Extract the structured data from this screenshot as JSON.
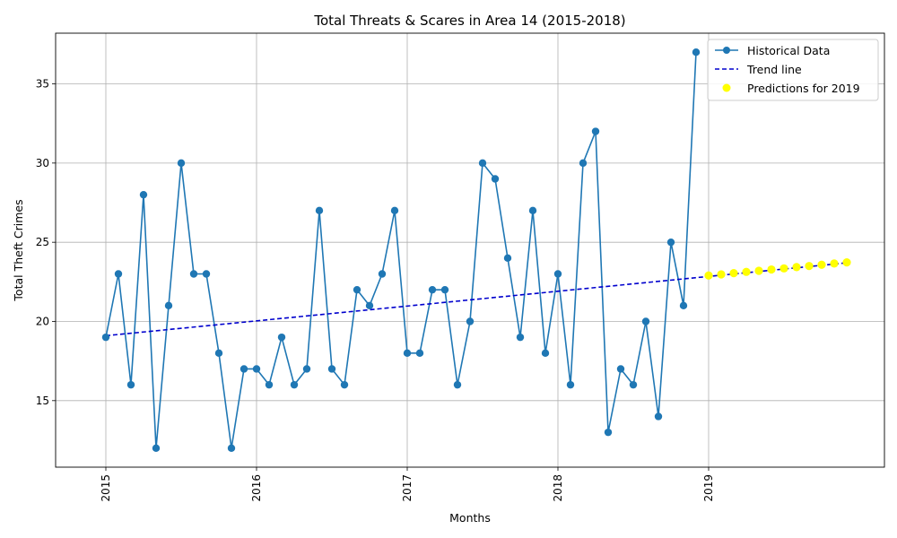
{
  "chart_data": {
    "type": "line",
    "title": "Total Threats & Scares in Area 14 (2015-2018)",
    "xlabel": "Months",
    "ylabel": "Total Theft Crimes",
    "xlim": [
      "2014-09",
      "2020-03"
    ],
    "ylim": [
      10.8,
      38.2
    ],
    "x_ticks": [
      "2015",
      "2016",
      "2017",
      "2018",
      "2019"
    ],
    "y_ticks": [
      15,
      20,
      25,
      30,
      35
    ],
    "grid": true,
    "legend_position": "top-right",
    "colors": {
      "historical": "#1f77b4",
      "trend": "#0000cd",
      "predictions": "#ffff00",
      "grid": "#b0b0b0"
    },
    "series": [
      {
        "name": "Historical Data",
        "style": "line-markers",
        "x": [
          "2015-01",
          "2015-02",
          "2015-03",
          "2015-04",
          "2015-05",
          "2015-06",
          "2015-07",
          "2015-08",
          "2015-09",
          "2015-10",
          "2015-11",
          "2015-12",
          "2016-01",
          "2016-02",
          "2016-03",
          "2016-04",
          "2016-05",
          "2016-06",
          "2016-07",
          "2016-08",
          "2016-09",
          "2016-10",
          "2016-11",
          "2016-12",
          "2017-01",
          "2017-02",
          "2017-03",
          "2017-04",
          "2017-05",
          "2017-06",
          "2017-07",
          "2017-08",
          "2017-09",
          "2017-10",
          "2017-11",
          "2017-12",
          "2018-01",
          "2018-02",
          "2018-03",
          "2018-04",
          "2018-05",
          "2018-06",
          "2018-07",
          "2018-08",
          "2018-09",
          "2018-10",
          "2018-11",
          "2018-12"
        ],
        "values": [
          19,
          23,
          16,
          28,
          12,
          21,
          30,
          23,
          23,
          18,
          12,
          17,
          17,
          16,
          19,
          16,
          17,
          27,
          17,
          16,
          22,
          21,
          23,
          27,
          18,
          18,
          22,
          22,
          16,
          20,
          30,
          29,
          24,
          19,
          27,
          18,
          23,
          16,
          30,
          32,
          13,
          17,
          16,
          20,
          14,
          25,
          21,
          37
        ]
      },
      {
        "name": "Trend line",
        "style": "dashed",
        "x": [
          "2015-01",
          "2019-12"
        ],
        "values": [
          19.1,
          23.7
        ]
      },
      {
        "name": "Predictions for 2019",
        "style": "scatter",
        "x": [
          "2019-01",
          "2019-02",
          "2019-03",
          "2019-04",
          "2019-05",
          "2019-06",
          "2019-07",
          "2019-08",
          "2019-09",
          "2019-10",
          "2019-11",
          "2019-12"
        ],
        "values": [
          22.9,
          22.97,
          23.05,
          23.13,
          23.2,
          23.28,
          23.35,
          23.43,
          23.5,
          23.58,
          23.66,
          23.73
        ]
      }
    ]
  }
}
